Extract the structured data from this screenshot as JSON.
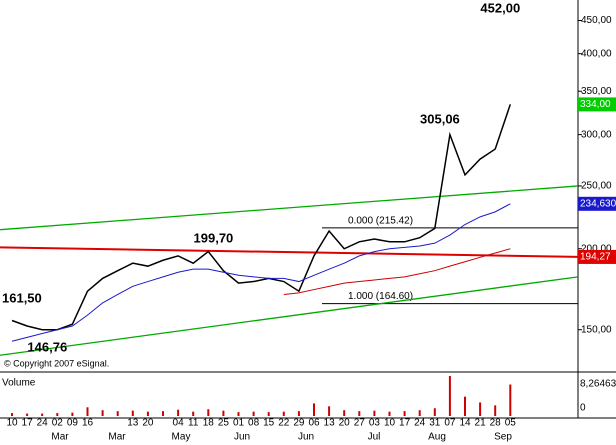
{
  "chart_data": {
    "type": "line",
    "log_scale": true,
    "categories": [
      "10",
      "17",
      "24",
      "02",
      "09",
      "16",
      null,
      null,
      "13",
      "20",
      null,
      "04",
      "11",
      "18",
      "25",
      "01",
      "08",
      "15",
      "22",
      "29",
      "06",
      "13",
      "20",
      "27",
      "03",
      "10",
      "17",
      "24",
      "31",
      "07",
      "14",
      "21",
      "28",
      "05"
    ],
    "months": [
      "Mar",
      "Mar",
      "May",
      "Jun",
      "Jun",
      "Jul",
      "Aug",
      "Sep"
    ],
    "series": [
      {
        "color": "#000000",
        "values": [
          155,
          152,
          150,
          150,
          153,
          172,
          180,
          185,
          190,
          188,
          192,
          195,
          190,
          198,
          185,
          177,
          178,
          180,
          178,
          172,
          195,
          213,
          200,
          205,
          207,
          205,
          205,
          208,
          215,
          300,
          260,
          275,
          285,
          334
        ],
        "last_value_label": "334,00",
        "label_color": "#00cc00"
      },
      {
        "color": "#1a1acc",
        "values": [
          144,
          146,
          148,
          150,
          152,
          158,
          165,
          170,
          175,
          178,
          181,
          184,
          186,
          186,
          184,
          182,
          181,
          180,
          180,
          178,
          182,
          186,
          190,
          195,
          198,
          200,
          201,
          202,
          204,
          210,
          218,
          224,
          228,
          234.63
        ],
        "last_value_label": "234,630",
        "label_color": "#1a1acc"
      },
      {
        "color": "#cc0000",
        "values": [
          null,
          null,
          null,
          null,
          null,
          null,
          null,
          null,
          null,
          null,
          null,
          null,
          null,
          null,
          null,
          null,
          null,
          null,
          170,
          171,
          173,
          175,
          177,
          178,
          179,
          180,
          181,
          183,
          185,
          188,
          191,
          194,
          197,
          200
        ]
      }
    ],
    "trendlines": [
      {
        "color": "#e00000",
        "values": [
          201,
          194.27
        ],
        "label": "194,27"
      },
      {
        "color": "#00aa00",
        "values": [
          214,
          250
        ]
      },
      {
        "color": "#00aa00",
        "values": [
          137,
          181
        ]
      }
    ],
    "levels": [
      {
        "value": 215.42,
        "label": "0.000 (215.42)"
      },
      {
        "value": 164.6,
        "label": "1.000 (164.60)"
      }
    ],
    "price_labels": [
      {
        "value": 452,
        "label": "452,00",
        "at": 33
      },
      {
        "value": 305.06,
        "label": "305,06",
        "at": 29
      },
      {
        "value": 199.7,
        "label": "199,70",
        "at": 14
      },
      {
        "value": 161.5,
        "label": "161,50",
        "at": 0
      },
      {
        "value": 146.76,
        "label": "146,76",
        "at": 3
      }
    ],
    "ylim": [
      130,
      484
    ],
    "yticks": [
      {
        "value": 150,
        "label": "150,00"
      },
      {
        "value": 200,
        "label": "200,00"
      },
      {
        "value": 250,
        "label": "250,00"
      },
      {
        "value": 300,
        "label": "300,00"
      },
      {
        "value": 350,
        "label": "350,00"
      },
      {
        "value": 400,
        "label": "400,00"
      },
      {
        "value": 450,
        "label": "450,00"
      }
    ],
    "copyright": "© Copyright 2007 eSignal.",
    "volume": {
      "title": "Volume",
      "values": [
        0.6,
        0.5,
        0.5,
        0.6,
        0.7,
        1.8,
        1.2,
        1.0,
        1.1,
        0.9,
        1.0,
        1.3,
        0.9,
        1.4,
        1.1,
        0.8,
        0.9,
        0.8,
        0.9,
        1.0,
        2.6,
        2.0,
        1.2,
        1.0,
        1.1,
        0.9,
        1.0,
        1.2,
        1.6,
        8.26463,
        4.0,
        2.8,
        2.2,
        6.5
      ],
      "color": "#cc0000",
      "ylim": [
        0,
        8.26463
      ],
      "yticks": [
        0,
        {
          "value": 8.26463,
          "label": "8,26463"
        }
      ]
    }
  }
}
